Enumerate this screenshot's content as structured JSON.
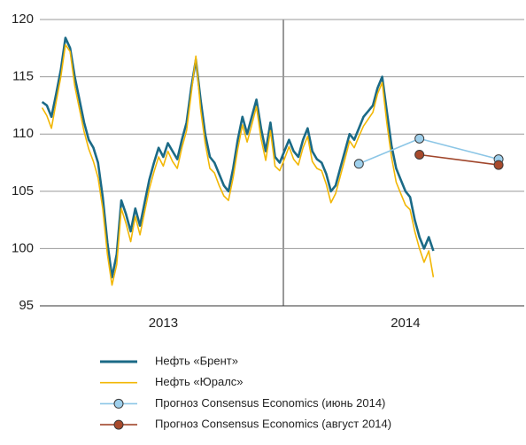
{
  "chart_data": {
    "type": "line",
    "categories": [
      null,
      null,
      null,
      null,
      null,
      null,
      null,
      null,
      null,
      null,
      null,
      null,
      null,
      null,
      null,
      null,
      null,
      null,
      null,
      null,
      null,
      null,
      null,
      null,
      null,
      null,
      "2013",
      null,
      null,
      null,
      null,
      null,
      null,
      null,
      null,
      null,
      null,
      null,
      null,
      null,
      null,
      null,
      null,
      null,
      null,
      null,
      null,
      null,
      null,
      null,
      null,
      null,
      null,
      null,
      null,
      null,
      null,
      null,
      null,
      null,
      null,
      null,
      null,
      null,
      null,
      null,
      null,
      null,
      null,
      null,
      null,
      null,
      null,
      null,
      null,
      null,
      null,
      null,
      "2014",
      null,
      null,
      null,
      null,
      null,
      null,
      null,
      null,
      null,
      null,
      null,
      null,
      null,
      null,
      null,
      null,
      null,
      null,
      null,
      null,
      null,
      null,
      null,
      null,
      null
    ],
    "ylim": [
      95,
      120
    ],
    "yticks": [
      95,
      100,
      105,
      110,
      115,
      120
    ],
    "grid": true,
    "series": [
      {
        "name": "Нефть «Брент»",
        "color": "#1b6a86",
        "values": [
          112.8,
          112.5,
          111.5,
          113.5,
          115.6,
          118.4,
          117.5,
          115,
          113,
          111,
          109.5,
          108.8,
          107.5,
          104.5,
          100.5,
          97.5,
          99.5,
          104.2,
          103,
          101.5,
          103.5,
          102,
          104,
          106,
          107.5,
          108.8,
          108,
          109.2,
          108.5,
          107.8,
          109.5,
          111,
          114,
          116.5,
          113,
          110,
          108,
          107.5,
          106.5,
          105.5,
          105,
          107,
          109.5,
          111.5,
          110,
          111.5,
          113,
          110.5,
          108.5,
          111,
          108,
          107.5,
          108.5,
          109.5,
          108.5,
          108,
          109.5,
          110.5,
          108.5,
          107.8,
          107.5,
          106.5,
          105,
          105.5,
          107,
          108.5,
          110,
          109.5,
          110.5,
          111.5,
          112,
          112.5,
          114,
          115,
          112,
          109,
          107,
          106,
          105,
          104.5,
          102.5,
          101,
          100,
          101,
          99.8,
          null,
          null,
          null,
          null,
          null,
          null,
          null,
          null,
          null,
          null,
          null,
          null,
          null,
          null,
          null,
          null,
          null,
          null,
          null
        ]
      },
      {
        "name": "Нефть «Юралс»",
        "color": "#f2b705",
        "values": [
          112.3,
          111.6,
          110.5,
          112.8,
          115,
          117.8,
          117.2,
          114.2,
          112.2,
          110.2,
          108.7,
          107.6,
          106.2,
          103.5,
          99.5,
          96.8,
          98.6,
          103.5,
          102.2,
          100.6,
          102.8,
          101.2,
          103.2,
          105.2,
          106.7,
          108,
          107.2,
          108.5,
          107.6,
          107,
          108.8,
          110.3,
          113.5,
          116.8,
          112.2,
          109.2,
          107,
          106.6,
          105.5,
          104.6,
          104.2,
          106.2,
          108.7,
          110.8,
          109.3,
          110.8,
          112.4,
          109.6,
          107.7,
          110.3,
          107.2,
          106.8,
          107.8,
          108.9,
          107.8,
          107.3,
          108.8,
          109.8,
          107.6,
          107,
          106.8,
          105.6,
          104,
          104.8,
          106.3,
          107.8,
          109.4,
          108.8,
          109.8,
          110.7,
          111.3,
          111.9,
          113.5,
          114.5,
          111,
          108,
          105.8,
          104.8,
          103.8,
          103.4,
          101.5,
          100,
          98.8,
          99.8,
          97.5,
          null,
          null,
          null,
          null,
          null,
          null,
          null,
          null,
          null,
          null,
          null,
          null,
          null,
          null,
          null,
          null,
          null,
          null,
          null
        ]
      },
      {
        "name": "Прогноз Consensus Economics (июнь 2014)",
        "color": "#8cc6e6",
        "marker_color": "#9fd0ec",
        "x": [
          68,
          81,
          98
        ],
        "values": [
          107.4,
          109.6,
          107.8
        ]
      },
      {
        "name": "Прогноз Consensus Economics (август 2014)",
        "color": "#a0452a",
        "marker_color": "#a84a2c",
        "x": [
          81,
          98
        ],
        "values": [
          108.2,
          107.3
        ]
      }
    ]
  }
}
